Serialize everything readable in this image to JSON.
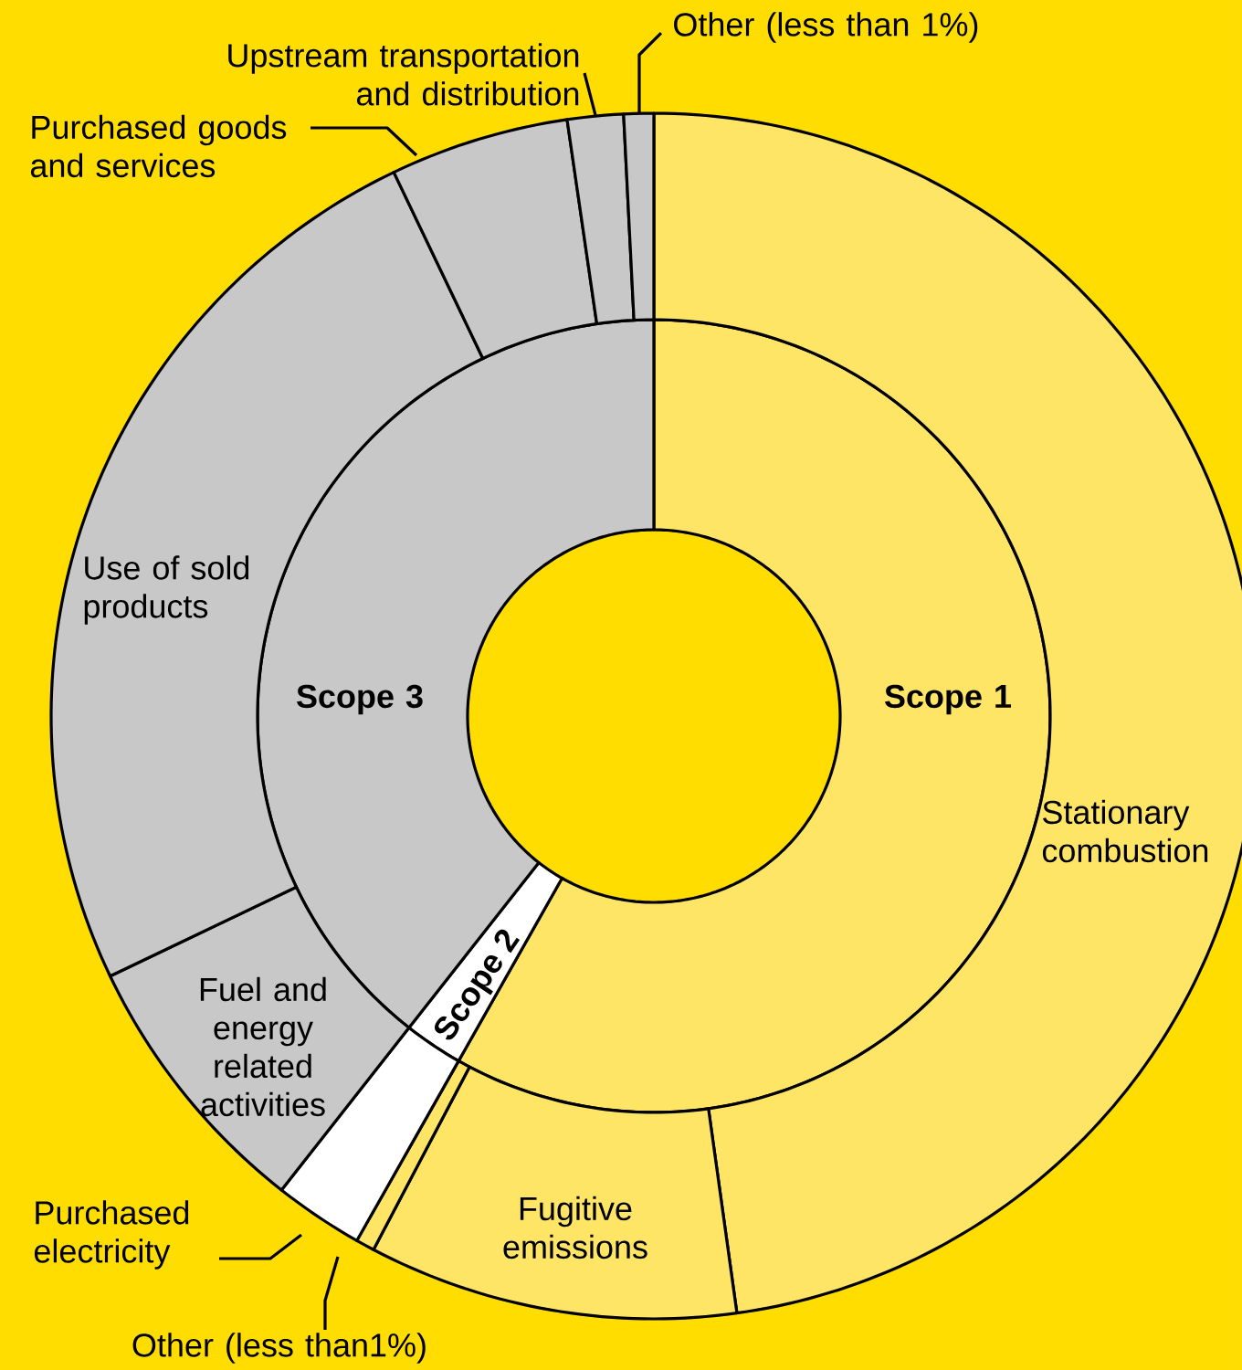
{
  "chart_data": [
    {
      "type": "donut",
      "categories": [
        "Scope 1",
        "Scope 2",
        "Scope 3"
      ],
      "values": [
        58.2,
        2.4,
        39.4
      ],
      "colors": [
        "#ffe566",
        "#ffffff",
        "#c8c8c8"
      ]
    },
    {
      "type": "donut",
      "categories": [
        "Stationary combustion",
        "Fugitive emissions",
        "Other (less than1%)",
        "Purchased electricity",
        "Fuel and energy related activities",
        "Use of sold products",
        "Purchased goods and services",
        "Upstream transportation and distribution",
        "Other (less than 1%)"
      ],
      "values": [
        47.8,
        9.9,
        0.5,
        2.4,
        7.3,
        25.0,
        4.8,
        1.5,
        0.8
      ],
      "colors": [
        "#ffe566",
        "#ffe566",
        "#ffe566",
        "#ffffff",
        "#c8c8c8",
        "#c8c8c8",
        "#c8c8c8",
        "#c8c8c8",
        "#c8c8c8"
      ]
    }
  ]
}
